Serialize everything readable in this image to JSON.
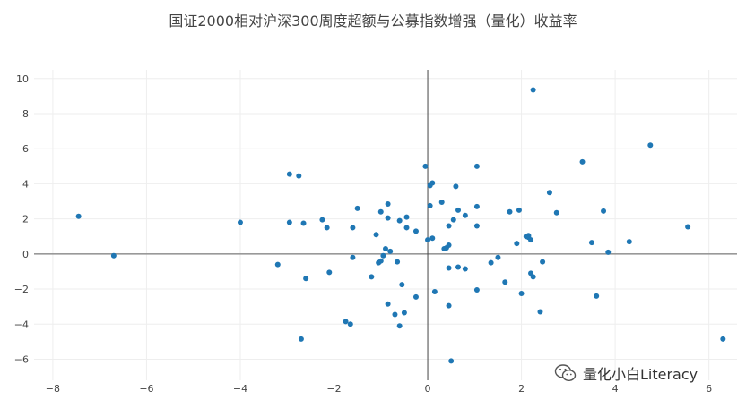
{
  "chart_data": {
    "type": "scatter",
    "title": "国证2000相对沪深300周度超额与公募指数增强（量化）收益率",
    "xlabel": "",
    "ylabel": "",
    "xlim": [
      -8.4,
      6.6
    ],
    "ylim": [
      -7.2,
      10.5
    ],
    "xticks": [
      -8,
      -6,
      -4,
      -2,
      0,
      2,
      4,
      6
    ],
    "yticks": [
      -6,
      -4,
      -2,
      0,
      2,
      4,
      6,
      8,
      10
    ],
    "grid": true,
    "zero_lines": true,
    "marker_color": "#1f77b4",
    "points": [
      [
        -7.45,
        2.15
      ],
      [
        -6.7,
        -0.1
      ],
      [
        -4.0,
        1.8
      ],
      [
        -3.2,
        -0.6
      ],
      [
        -2.95,
        4.55
      ],
      [
        -2.95,
        1.8
      ],
      [
        -2.75,
        4.45
      ],
      [
        -2.65,
        1.75
      ],
      [
        -2.6,
        -1.4
      ],
      [
        -2.7,
        -4.85
      ],
      [
        -2.25,
        1.95
      ],
      [
        -2.15,
        1.5
      ],
      [
        -2.1,
        -1.05
      ],
      [
        -1.75,
        -3.85
      ],
      [
        -1.65,
        -4.0
      ],
      [
        -1.6,
        1.5
      ],
      [
        -1.6,
        -0.2
      ],
      [
        -1.5,
        2.6
      ],
      [
        -1.2,
        -1.3
      ],
      [
        -1.1,
        1.1
      ],
      [
        -1.05,
        -0.5
      ],
      [
        -1.0,
        2.4
      ],
      [
        -1.0,
        -0.4
      ],
      [
        -0.95,
        -0.1
      ],
      [
        -0.9,
        0.3
      ],
      [
        -0.85,
        2.05
      ],
      [
        -0.85,
        2.85
      ],
      [
        -0.85,
        -2.85
      ],
      [
        -0.8,
        0.15
      ],
      [
        -0.7,
        -3.45
      ],
      [
        -0.65,
        -0.45
      ],
      [
        -0.6,
        1.9
      ],
      [
        -0.6,
        -4.1
      ],
      [
        -0.55,
        -1.75
      ],
      [
        -0.5,
        -3.35
      ],
      [
        -0.45,
        2.1
      ],
      [
        -0.45,
        1.5
      ],
      [
        -0.25,
        1.3
      ],
      [
        -0.25,
        -2.45
      ],
      [
        -0.05,
        5.0
      ],
      [
        0.0,
        0.8
      ],
      [
        0.05,
        3.9
      ],
      [
        0.05,
        2.75
      ],
      [
        0.1,
        4.05
      ],
      [
        0.1,
        0.9
      ],
      [
        0.15,
        -2.15
      ],
      [
        0.3,
        2.95
      ],
      [
        0.35,
        0.3
      ],
      [
        0.4,
        0.35
      ],
      [
        0.45,
        0.5
      ],
      [
        0.45,
        -0.8
      ],
      [
        0.45,
        -2.95
      ],
      [
        0.45,
        1.6
      ],
      [
        0.5,
        -6.1
      ],
      [
        0.55,
        1.95
      ],
      [
        0.6,
        3.85
      ],
      [
        0.65,
        2.5
      ],
      [
        0.65,
        -0.75
      ],
      [
        0.8,
        2.2
      ],
      [
        0.8,
        -0.85
      ],
      [
        1.05,
        5.0
      ],
      [
        1.05,
        2.7
      ],
      [
        1.05,
        1.6
      ],
      [
        1.05,
        -2.05
      ],
      [
        1.35,
        -0.5
      ],
      [
        1.5,
        -0.2
      ],
      [
        1.65,
        -1.6
      ],
      [
        1.75,
        2.4
      ],
      [
        1.9,
        0.6
      ],
      [
        1.95,
        2.5
      ],
      [
        2.0,
        -2.25
      ],
      [
        2.1,
        1.0
      ],
      [
        2.15,
        0.95
      ],
      [
        2.15,
        1.05
      ],
      [
        2.2,
        0.8
      ],
      [
        2.2,
        -1.1
      ],
      [
        2.25,
        -1.3
      ],
      [
        2.25,
        9.35
      ],
      [
        2.4,
        -3.3
      ],
      [
        2.45,
        -0.45
      ],
      [
        2.6,
        3.5
      ],
      [
        2.75,
        2.35
      ],
      [
        3.3,
        5.25
      ],
      [
        3.5,
        0.65
      ],
      [
        3.6,
        -2.4
      ],
      [
        3.75,
        2.45
      ],
      [
        3.85,
        0.1
      ],
      [
        4.3,
        0.7
      ],
      [
        4.75,
        6.2
      ],
      [
        5.55,
        1.55
      ],
      [
        6.3,
        -4.85
      ]
    ]
  },
  "watermark": {
    "text": "量化小白Literacy",
    "icon": "wechat-icon"
  }
}
